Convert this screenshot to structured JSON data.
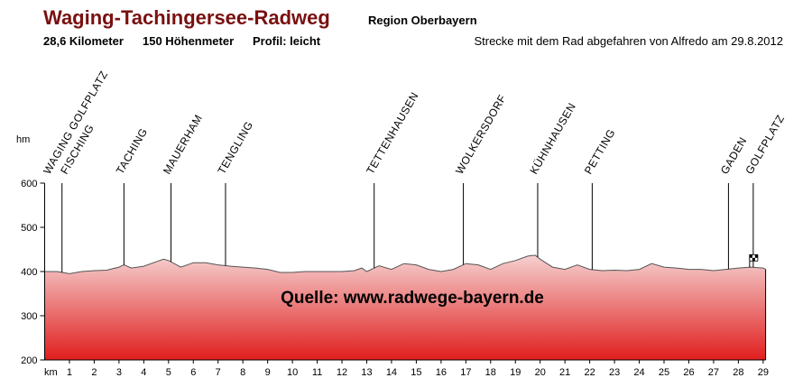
{
  "chart_data": {
    "type": "area",
    "title": "Waging-Tachingersee-Radweg",
    "subtitle": "Region Oberbayern",
    "stats": [
      "28,6 Kilometer",
      "150 Höhenmeter",
      "Profil: leicht"
    ],
    "note": "Strecke mit dem Rad abgefahren von Alfredo am  29.8.2012",
    "source": "Quelle: www.radwege-bayern.de",
    "y_label": "hm",
    "x_label": "km",
    "xlim": [
      0,
      29.1
    ],
    "xticks": [
      1,
      2,
      3,
      4,
      5,
      6,
      7,
      8,
      9,
      10,
      11,
      12,
      13,
      14,
      15,
      16,
      17,
      18,
      19,
      20,
      21,
      22,
      23,
      24,
      25,
      26,
      27,
      28,
      29
    ],
    "ylim": [
      200,
      600
    ],
    "yticks": [
      200,
      300,
      400,
      500,
      600
    ],
    "x": [
      0,
      0.5,
      1,
      1.5,
      2,
      2.5,
      3,
      3.2,
      3.5,
      4,
      4.5,
      4.8,
      5,
      5.5,
      6,
      6.5,
      7,
      7.5,
      8,
      8.5,
      9,
      9.5,
      10,
      10.5,
      11,
      11.5,
      12,
      12.5,
      12.8,
      13,
      13.5,
      14,
      14.5,
      15,
      15.5,
      16,
      16.5,
      17,
      17.5,
      18,
      18.5,
      19,
      19.5,
      19.8,
      20,
      20.5,
      21,
      21.5,
      22,
      22.5,
      23,
      23.5,
      24,
      24.5,
      25,
      25.5,
      26,
      26.5,
      27,
      27.5,
      28,
      28.5,
      29,
      29.1
    ],
    "values": [
      400,
      400,
      395,
      400,
      402,
      403,
      410,
      415,
      408,
      412,
      422,
      428,
      425,
      410,
      420,
      420,
      415,
      412,
      410,
      408,
      405,
      398,
      398,
      400,
      400,
      400,
      400,
      402,
      408,
      400,
      413,
      405,
      418,
      415,
      405,
      400,
      405,
      418,
      415,
      405,
      418,
      425,
      435,
      437,
      428,
      410,
      405,
      415,
      405,
      402,
      403,
      402,
      405,
      418,
      410,
      408,
      405,
      405,
      402,
      405,
      408,
      410,
      408,
      405
    ],
    "color_top": "#f6d0d0",
    "color_bottom": "#e01e1e",
    "places": [
      {
        "name": "WAGING GOLFPLATZ",
        "km": 0.7
      },
      {
        "name": "FISCHING",
        "km": 0.7
      },
      {
        "name": "TACHING",
        "km": 3.2
      },
      {
        "name": "MAUERHAM",
        "km": 5.1
      },
      {
        "name": "TENGLING",
        "km": 7.3
      },
      {
        "name": "TETTENHAUSEN",
        "km": 13.3
      },
      {
        "name": "WOLKERSDORF",
        "km": 16.9
      },
      {
        "name": "KÜHNHAUSEN",
        "km": 19.9
      },
      {
        "name": "PETTING",
        "km": 22.1
      },
      {
        "name": "GADEN",
        "km": 27.6
      },
      {
        "name": "GOLFPLATZ",
        "km": 28.6
      }
    ]
  }
}
